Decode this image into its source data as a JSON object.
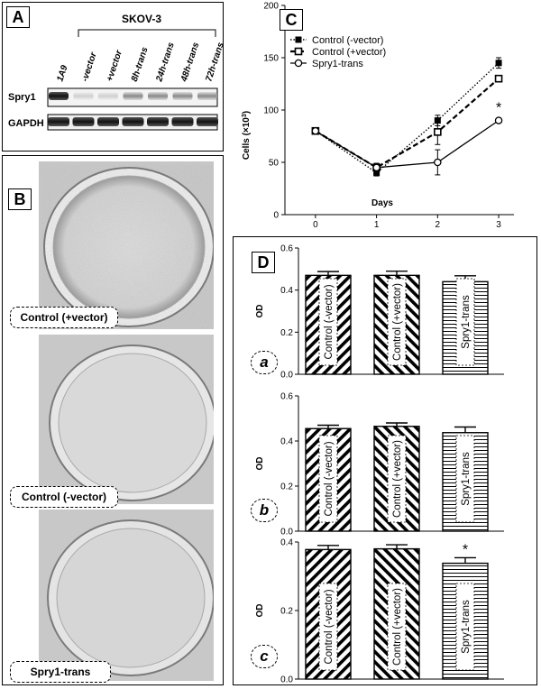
{
  "panels": {
    "A": {
      "letter": "A",
      "cell_line": "SKOV-3",
      "lane_labels": [
        "1A9",
        "-vector",
        "+vector",
        "8h-trans",
        "24h-trans",
        "48h-trans",
        "72h-trans"
      ],
      "row_labels": [
        "Spry1",
        "GAPDH"
      ]
    },
    "B": {
      "letter": "B",
      "dish_labels": [
        "Control (+vector)",
        "Control (-vector)",
        "Spry1-trans"
      ]
    },
    "C": {
      "letter": "C"
    },
    "D": {
      "letter": "D",
      "subpanel_labels": [
        "a",
        "b",
        "c"
      ]
    }
  },
  "chart_data": [
    {
      "type": "line",
      "panel": "C",
      "xlabel": "Days",
      "ylabel": "Cells (×10³)",
      "ylabel_main": "Cells (×10",
      "ylabel_sup": "3",
      "ylabel_close": ")",
      "x": [
        0,
        1,
        2,
        3
      ],
      "xticks": [
        "0",
        "1",
        "2",
        "3"
      ],
      "yticks": [
        "0",
        "50",
        "100",
        "150",
        "200"
      ],
      "ylim": [
        0,
        200
      ],
      "xlim": [
        -0.5,
        3.25
      ],
      "legend_position": "top-left",
      "series": [
        {
          "name": "Control (-vector)",
          "values": [
            80,
            40,
            90,
            145
          ],
          "errors": [
            0,
            3,
            5,
            5
          ],
          "style": "dotted",
          "marker": "filled-square"
        },
        {
          "name": "Control (+vector)",
          "values": [
            80,
            45,
            79,
            130
          ],
          "errors": [
            0,
            4,
            12,
            3
          ],
          "style": "dashed",
          "marker": "open-square"
        },
        {
          "name": "Spry1-trans",
          "values": [
            80,
            45,
            50,
            90
          ],
          "errors": [
            0,
            4,
            12,
            2
          ],
          "style": "solid",
          "marker": "open-circle"
        }
      ],
      "annotations": [
        {
          "text": "*",
          "x": 3,
          "y": 98
        }
      ]
    },
    {
      "type": "bar",
      "panel": "D-a",
      "ylabel": "OD",
      "categories": [
        "Control (-vector)",
        "Control (+vector)",
        "Spry1-trans"
      ],
      "values": [
        0.47,
        0.47,
        0.44
      ],
      "errors": [
        0.018,
        0.02,
        0.028
      ],
      "ylim": [
        0,
        0.6
      ],
      "yticks": [
        "0.0",
        "0.2",
        "0.4",
        "0.6"
      ],
      "patterns": [
        "diag-right",
        "diag-left",
        "horizontal"
      ],
      "significance": [
        "",
        "",
        ""
      ]
    },
    {
      "type": "bar",
      "panel": "D-b",
      "ylabel": "OD",
      "categories": [
        "Control (-vector)",
        "Control (+vector)",
        "Spry1-trans"
      ],
      "values": [
        0.455,
        0.465,
        0.437
      ],
      "errors": [
        0.015,
        0.015,
        0.025
      ],
      "ylim": [
        0,
        0.6
      ],
      "yticks": [
        "0.0",
        "0.2",
        "0.4",
        "0.6"
      ],
      "patterns": [
        "diag-right",
        "diag-left",
        "horizontal"
      ],
      "significance": [
        "",
        "",
        ""
      ]
    },
    {
      "type": "bar",
      "panel": "D-c",
      "ylabel": "OD",
      "categories": [
        "Control (-vector)",
        "Control (+vector)",
        "Spry1-trans"
      ],
      "values": [
        0.378,
        0.38,
        0.338
      ],
      "errors": [
        0.012,
        0.012,
        0.016
      ],
      "ylim": [
        0,
        0.4
      ],
      "yticks": [
        "0.0",
        "0.2",
        "0.4"
      ],
      "patterns": [
        "diag-right",
        "diag-left",
        "horizontal"
      ],
      "significance": [
        "",
        "",
        "*"
      ]
    }
  ]
}
